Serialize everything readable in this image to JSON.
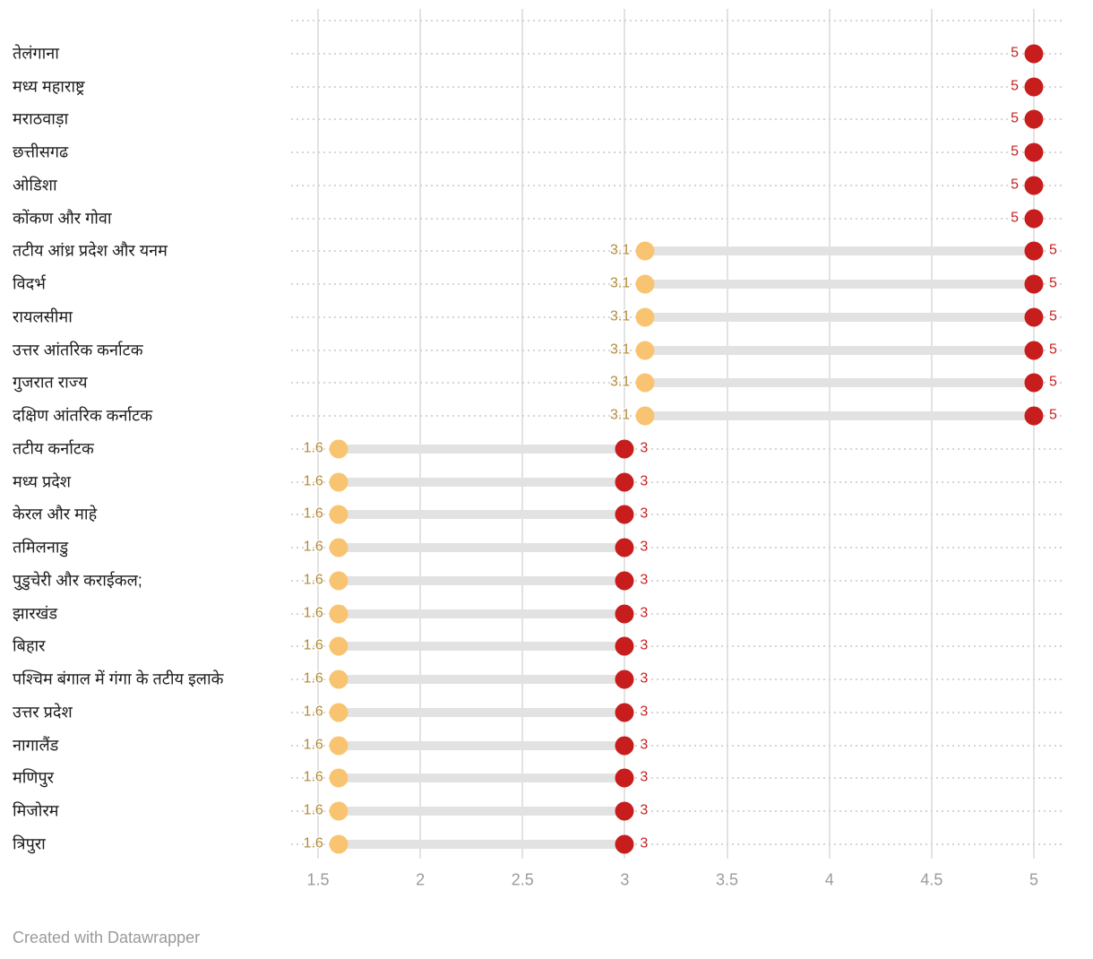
{
  "chart_data": {
    "type": "range",
    "title": "",
    "xlabel": "",
    "ylabel": "",
    "x_min": 1.5,
    "x_max": 5,
    "x_ticks": [
      "1.5",
      "2",
      "2.5",
      "3",
      "3.5",
      "4",
      "4.5",
      "5"
    ],
    "grid": "vertical-solid-plus-row-dotted",
    "colors": {
      "low_dot": "#f9c471",
      "low_label": "#b28a34",
      "high_dot": "#c71e1d",
      "high_label": "#c71e1d",
      "bar": "#e2e2e2",
      "gridline": "#e2e2e2",
      "row_dotted": "#d4d4d4",
      "axis_text": "#9b9b9b",
      "row_label_text": "#1d1d1d"
    },
    "rows": [
      {
        "label": "तेलंगाना",
        "high": 5,
        "high_label": "5",
        "high_label_side": "left"
      },
      {
        "label": "मध्य महाराष्ट्र",
        "high": 5,
        "high_label": "5",
        "high_label_side": "left"
      },
      {
        "label": "मराठवाड़ा",
        "high": 5,
        "high_label": "5",
        "high_label_side": "left"
      },
      {
        "label": "छत्तीसगढ",
        "high": 5,
        "high_label": "5",
        "high_label_side": "left"
      },
      {
        "label": "ओडिशा",
        "high": 5,
        "high_label": "5",
        "high_label_side": "left"
      },
      {
        "label": "कोंकण और गोवा",
        "high": 5,
        "high_label": "5",
        "high_label_side": "left"
      },
      {
        "label": "तटीय आंध्र प्रदेश और यनम",
        "low": 3.1,
        "low_label": "3.1",
        "high": 5,
        "high_label": "5",
        "high_label_side": "right"
      },
      {
        "label": "विदर्भ",
        "low": 3.1,
        "low_label": "3.1",
        "high": 5,
        "high_label": "5",
        "high_label_side": "right"
      },
      {
        "label": "रायलसीमा",
        "low": 3.1,
        "low_label": "3.1",
        "high": 5,
        "high_label": "5",
        "high_label_side": "right"
      },
      {
        "label": "उत्तर आंतरिक कर्नाटक",
        "low": 3.1,
        "low_label": "3.1",
        "high": 5,
        "high_label": "5",
        "high_label_side": "right"
      },
      {
        "label": "गुजरात राज्य",
        "low": 3.1,
        "low_label": "3.1",
        "high": 5,
        "high_label": "5",
        "high_label_side": "right"
      },
      {
        "label": "दक्षिण आंतरिक कर्नाटक",
        "low": 3.1,
        "low_label": "3.1",
        "high": 5,
        "high_label": "5",
        "high_label_side": "right"
      },
      {
        "label": "तटीय कर्नाटक",
        "low": 1.6,
        "low_label": "1.6",
        "high": 3,
        "high_label": "3",
        "high_label_side": "right"
      },
      {
        "label": "मध्य प्रदेश",
        "low": 1.6,
        "low_label": "1.6",
        "high": 3,
        "high_label": "3",
        "high_label_side": "right"
      },
      {
        "label": "केरल और माहे",
        "low": 1.6,
        "low_label": "1.6",
        "high": 3,
        "high_label": "3",
        "high_label_side": "right"
      },
      {
        "label": "तमिलनाडु",
        "low": 1.6,
        "low_label": "1.6",
        "high": 3,
        "high_label": "3",
        "high_label_side": "right"
      },
      {
        "label": "पुडुचेरी और कराईकल;",
        "low": 1.6,
        "low_label": "1.6",
        "high": 3,
        "high_label": "3",
        "high_label_side": "right"
      },
      {
        "label": "झारखंड",
        "low": 1.6,
        "low_label": "1.6",
        "high": 3,
        "high_label": "3",
        "high_label_side": "right"
      },
      {
        "label": "बिहार",
        "low": 1.6,
        "low_label": "1.6",
        "high": 3,
        "high_label": "3",
        "high_label_side": "right"
      },
      {
        "label": "पश्चिम बंगाल में गंगा के तटीय इलाके",
        "low": 1.6,
        "low_label": "1.6",
        "high": 3,
        "high_label": "3",
        "high_label_side": "right"
      },
      {
        "label": "उत्तर प्रदेश",
        "low": 1.6,
        "low_label": "1.6",
        "high": 3,
        "high_label": "3",
        "high_label_side": "right"
      },
      {
        "label": "नागालैंड",
        "low": 1.6,
        "low_label": "1.6",
        "high": 3,
        "high_label": "3",
        "high_label_side": "right"
      },
      {
        "label": "मणिपुर",
        "low": 1.6,
        "low_label": "1.6",
        "high": 3,
        "high_label": "3",
        "high_label_side": "right"
      },
      {
        "label": "मिजोरम",
        "low": 1.6,
        "low_label": "1.6",
        "high": 3,
        "high_label": "3",
        "high_label_side": "right"
      },
      {
        "label": "त्रिपुरा",
        "low": 1.6,
        "low_label": "1.6",
        "high": 3,
        "high_label": "3",
        "high_label_side": "right"
      }
    ]
  },
  "footer": {
    "credit": "Created with Datawrapper"
  }
}
